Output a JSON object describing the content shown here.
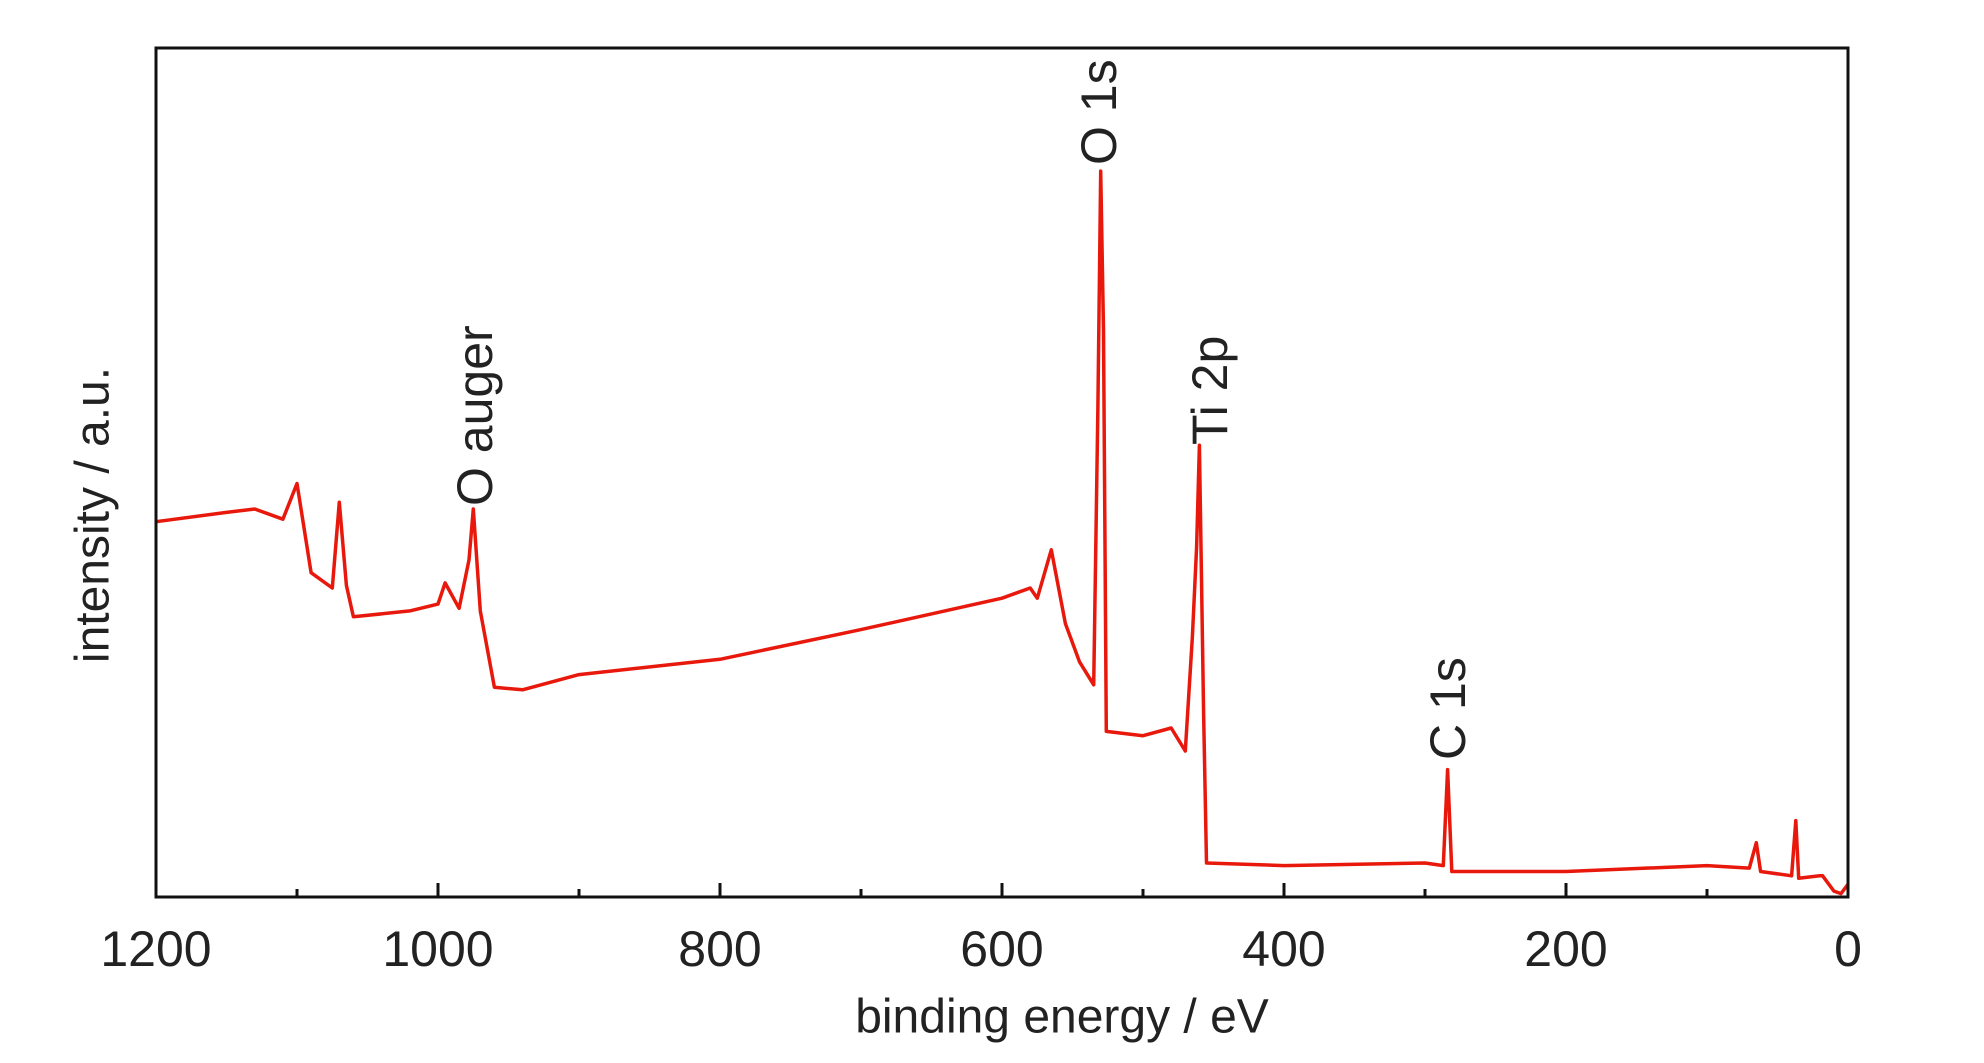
{
  "chart_data": {
    "type": "line",
    "xlabel": "binding energy / eV",
    "ylabel": "intensity / a.u.",
    "xlim": [
      1200,
      0
    ],
    "xticks": [
      1200,
      1000,
      800,
      600,
      400,
      200,
      0
    ],
    "xminorticks": [
      1100,
      900,
      700,
      500,
      300,
      100
    ],
    "ylim": [
      0,
      100
    ],
    "annotations": [
      "O auger",
      "O 1s",
      "Ti 2p",
      "C 1s"
    ],
    "series": [
      {
        "color": "#e8190c",
        "x": [
          1200,
          1150,
          1130,
          1110,
          1100,
          1090,
          1075,
          1070,
          1065,
          1060,
          1020,
          1000,
          995,
          985,
          978,
          975,
          970,
          960,
          940,
          900,
          800,
          700,
          600,
          580,
          575,
          565,
          555,
          545,
          535,
          532,
          530,
          528,
          526,
          500,
          480,
          470,
          465,
          462,
          460,
          457,
          455,
          400,
          300,
          287,
          284,
          281,
          200,
          100,
          70,
          65,
          62,
          40,
          37,
          35,
          20,
          18,
          10,
          5,
          0
        ],
        "values": [
          44.2,
          45.3,
          45.7,
          44.5,
          48.7,
          38.2,
          36.4,
          46.5,
          36.7,
          33.0,
          33.7,
          34.5,
          37.0,
          34.0,
          39.7,
          45.7,
          33.7,
          24.7,
          24.4,
          26.2,
          28.0,
          31.5,
          35.2,
          36.4,
          35.2,
          40.9,
          32.2,
          27.7,
          25.0,
          57.7,
          85.5,
          66.7,
          19.5,
          19.0,
          19.9,
          17.2,
          30.7,
          41.2,
          53.2,
          21.7,
          4.0,
          3.7,
          4.0,
          3.7,
          15.0,
          3.0,
          3.0,
          3.7,
          3.4,
          6.4,
          3.0,
          2.5,
          9.0,
          2.2,
          2.5,
          2.5,
          0.7,
          0.4,
          1.5
        ]
      }
    ]
  }
}
